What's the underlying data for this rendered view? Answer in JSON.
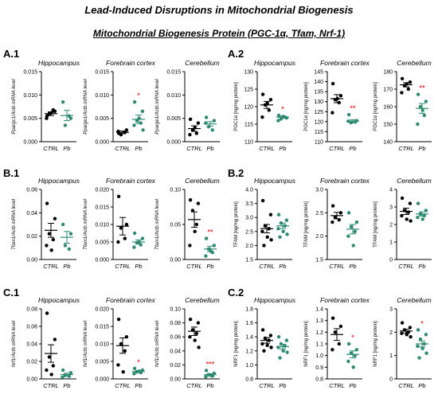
{
  "header": {
    "title": "Lead-Induced Disruptions in Mitochondrial Biogenesis",
    "subtitle": "Mitochondrial Biogenesis Protein (PGC-1α, Tfam, Nrf-1)"
  },
  "panels": {
    "a1": "A.1",
    "a2": "A.2",
    "b1": "B.1",
    "b2": "B.2",
    "c1": "C.1",
    "c2": "C.2"
  },
  "colors": {
    "ctrl": "#000000",
    "pb": "#2e8b6f",
    "significance": "#e8474f",
    "axis": "#000000"
  },
  "chart_data": [
    {
      "type": "scatter",
      "region": "Hippocampus",
      "ylabel": "Ppargc1/Actb mRNA level",
      "categories": [
        "CTRL",
        "Pb"
      ],
      "ylim": [
        0,
        0.015
      ],
      "ticks": [
        "0.000",
        "0.005",
        "0.010",
        "0.015"
      ],
      "series": [
        {
          "name": "CTRL",
          "values": [
            0.0055,
            0.0065,
            0.006,
            0.0068,
            0.005,
            0.0062
          ],
          "mean": 0.006,
          "sem": 0.0004
        },
        {
          "name": "Pb",
          "values": [
            0.0085,
            0.005,
            0.0035,
            0.0055
          ],
          "mean": 0.0056,
          "sem": 0.0011
        }
      ],
      "significance": ""
    },
    {
      "type": "scatter",
      "region": "Forebrain cortex",
      "ylabel": "Pparge1/Actb mRNA level",
      "categories": [
        "CTRL",
        "Pb"
      ],
      "ylim": [
        0,
        0.015
      ],
      "ticks": [
        "0.000",
        "0.005",
        "0.010",
        "0.015"
      ],
      "series": [
        {
          "name": "CTRL",
          "values": [
            0.0018,
            0.0025,
            0.0015,
            0.002,
            0.0022
          ],
          "mean": 0.002,
          "sem": 0.0003
        },
        {
          "name": "Pb",
          "values": [
            0.0085,
            0.0065,
            0.0045,
            0.004,
            0.0035,
            0.005,
            0.0025
          ],
          "mean": 0.0048,
          "sem": 0.0009
        }
      ],
      "significance": "*"
    },
    {
      "type": "scatter",
      "region": "Cerebellum",
      "ylabel": "Pparge1/Actb mRNA level",
      "categories": [
        "CTRL",
        "Pb"
      ],
      "ylim": [
        0,
        0.015
      ],
      "ticks": [
        "0.000",
        "0.005",
        "0.010",
        "0.015"
      ],
      "series": [
        {
          "name": "CTRL",
          "values": [
            0.0048,
            0.004,
            0.0025,
            0.0018,
            0.0015,
            0.003
          ],
          "mean": 0.0028,
          "sem": 0.0006
        },
        {
          "name": "Pb",
          "values": [
            0.0052,
            0.0045,
            0.0032,
            0.0025,
            0.004
          ],
          "mean": 0.0038,
          "sem": 0.0005
        }
      ],
      "significance": ""
    },
    {
      "type": "scatter",
      "region": "Hippocampus",
      "ylabel": "PGC1α [ng/mg protein]",
      "categories": [
        "CTRL",
        "Pb"
      ],
      "ylim": [
        110,
        130
      ],
      "ticks": [
        "110",
        "115",
        "120",
        "125",
        "130"
      ],
      "series": [
        {
          "name": "CTRL",
          "values": [
            123.5,
            122,
            120.5,
            119,
            117,
            121
          ],
          "mean": 120.5,
          "sem": 1
        },
        {
          "name": "Pb",
          "values": [
            117.5,
            116.8,
            116.5,
            117,
            116,
            117.2
          ],
          "mean": 117,
          "sem": 0.3
        }
      ],
      "significance": "*"
    },
    {
      "type": "scatter",
      "region": "Forebrain cortex",
      "ylabel": "PGC1α [ng/mg protein]",
      "categories": [
        "CTRL",
        "Pb"
      ],
      "ylim": [
        110,
        145
      ],
      "ticks": [
        "110",
        "115",
        "120",
        "125",
        "130",
        "135",
        "140",
        "145"
      ],
      "series": [
        {
          "name": "CTRL",
          "values": [
            139,
            133,
            131,
            129.5,
            124.5,
            131.5
          ],
          "mean": 131.5,
          "sem": 2
        },
        {
          "name": "Pb",
          "values": [
            123.5,
            120.5,
            119.5,
            119.8,
            120.2
          ],
          "mean": 120.3,
          "sem": 0.7
        }
      ],
      "significance": "**"
    },
    {
      "type": "scatter",
      "region": "Cerebellum",
      "ylabel": "PGC1α [ng/mg protein]",
      "categories": [
        "CTRL",
        "Pb"
      ],
      "ylim": [
        140,
        180
      ],
      "ticks": [
        "140",
        "150",
        "160",
        "170",
        "180"
      ],
      "series": [
        {
          "name": "CTRL",
          "values": [
            176,
            174,
            172,
            170,
            168,
            173
          ],
          "mean": 172.5,
          "sem": 1.2
        },
        {
          "name": "Pb",
          "values": [
            167,
            163,
            160,
            155,
            150,
            158
          ],
          "mean": 159,
          "sem": 2.8
        }
      ],
      "significance": "**"
    },
    {
      "type": "scatter",
      "region": "Hippocampus",
      "ylabel": "Tfam1/Actb mRNA level",
      "categories": [
        "CTRL",
        "Pb"
      ],
      "ylim": [
        0,
        0.06
      ],
      "ticks": [
        "0.00",
        "0.02",
        "0.04",
        "0.06"
      ],
      "series": [
        {
          "name": "CTRL",
          "values": [
            0.048,
            0.035,
            0.022,
            0.017,
            0.012,
            0.008
          ],
          "mean": 0.025,
          "sem": 0.006
        },
        {
          "name": "Pb",
          "values": [
            0.03,
            0.022,
            0.012,
            0.009
          ],
          "mean": 0.019,
          "sem": 0.005
        }
      ],
      "significance": ""
    },
    {
      "type": "scatter",
      "region": "Forebrain cortex",
      "ylabel": "Tfam1/Actb mRNA level",
      "categories": [
        "CTRL",
        "Pb"
      ],
      "ylim": [
        0,
        0.02
      ],
      "ticks": [
        "0.000",
        "0.005",
        "0.010",
        "0.015",
        "0.020"
      ],
      "series": [
        {
          "name": "CTRL",
          "values": [
            0.018,
            0.01,
            0.009,
            0.006,
            0.005
          ],
          "mean": 0.0095,
          "sem": 0.0025
        },
        {
          "name": "Pb",
          "values": [
            0.0075,
            0.006,
            0.0048,
            0.0042,
            0.0035,
            0.005
          ],
          "mean": 0.005,
          "sem": 0.0006
        }
      ],
      "significance": ""
    },
    {
      "type": "scatter",
      "region": "Cerebellum",
      "ylabel": "Tfam1/Actb mRNA level",
      "categories": [
        "CTRL",
        "Pb"
      ],
      "ylim": [
        0,
        0.1
      ],
      "ticks": [
        "0.00",
        "0.05",
        "0.10"
      ],
      "series": [
        {
          "name": "CTRL",
          "values": [
            0.085,
            0.08,
            0.07,
            0.05,
            0.02,
            0.04
          ],
          "mean": 0.057,
          "sem": 0.011
        },
        {
          "name": "Pb",
          "values": [
            0.03,
            0.02,
            0.015,
            0.01,
            0.005,
            0.012
          ],
          "mean": 0.015,
          "sem": 0.004
        }
      ],
      "significance": "**"
    },
    {
      "type": "scatter",
      "region": "Hippocampus",
      "ylabel": "TFAM [ng/mg protein]",
      "categories": [
        "CTRL",
        "Pb"
      ],
      "ylim": [
        1.5,
        4
      ],
      "ticks": [
        "1.5",
        "2.0",
        "2.5",
        "3.0",
        "3.5",
        "4.0"
      ],
      "series": [
        {
          "name": "CTRL",
          "values": [
            3.6,
            3.1,
            2.7,
            2.6,
            2.5,
            2.3,
            2.2,
            2.0
          ],
          "mean": 2.6,
          "sem": 0.15
        },
        {
          "name": "Pb",
          "values": [
            3.1,
            2.9,
            2.8,
            2.7,
            2.6,
            2.5,
            2.4,
            2.3
          ],
          "mean": 2.7,
          "sem": 0.1
        }
      ],
      "significance": ""
    },
    {
      "type": "scatter",
      "region": "Forebrain cortex",
      "ylabel": "TFAM [ng/mg protein]",
      "categories": [
        "CTRL",
        "Pb"
      ],
      "ylim": [
        1.5,
        3
      ],
      "ticks": [
        "1.5",
        "2.0",
        "2.5",
        "3.0"
      ],
      "series": [
        {
          "name": "CTRL",
          "values": [
            2.65,
            2.5,
            2.4,
            2.35,
            2.3
          ],
          "mean": 2.44,
          "sem": 0.07
        },
        {
          "name": "Pb",
          "values": [
            2.5,
            2.3,
            2.2,
            2.1,
            2.0,
            1.8
          ],
          "mean": 2.15,
          "sem": 0.1
        }
      ],
      "significance": ""
    },
    {
      "type": "scatter",
      "region": "Cerebellum",
      "ylabel": "TFAM [ng/mg protein]",
      "categories": [
        "CTRL",
        "Pb"
      ],
      "ylim": [
        0,
        4
      ],
      "ticks": [
        "0",
        "1",
        "2",
        "3",
        "4"
      ],
      "series": [
        {
          "name": "CTRL",
          "values": [
            3.5,
            3.2,
            2.8,
            2.7,
            2.5,
            2.3,
            2.2
          ],
          "mean": 2.75,
          "sem": 0.18
        },
        {
          "name": "Pb",
          "values": [
            3.2,
            2.8,
            2.6,
            2.5,
            2.4,
            2.3
          ],
          "mean": 2.6,
          "sem": 0.12
        }
      ],
      "significance": ""
    },
    {
      "type": "scatter",
      "region": "Hippocampus",
      "ylabel": "Nrf1/Actb mRNA level",
      "categories": [
        "CTRL",
        "Pb"
      ],
      "ylim": [
        0,
        0.08
      ],
      "ticks": [
        "0.00",
        "0.02",
        "0.04",
        "0.06",
        "0.08"
      ],
      "series": [
        {
          "name": "CTRL",
          "values": [
            0.075,
            0.045,
            0.025,
            0.015,
            0.01,
            0.005
          ],
          "mean": 0.029,
          "sem": 0.01
        },
        {
          "name": "Pb",
          "values": [
            0.01,
            0.007,
            0.004,
            0.003,
            0.002
          ],
          "mean": 0.005,
          "sem": 0.0015
        }
      ],
      "significance": ""
    },
    {
      "type": "scatter",
      "region": "Forebrain cortex",
      "ylabel": "Nrf1/Actb mRNA level",
      "categories": [
        "CTRL",
        "Pb"
      ],
      "ylim": [
        0,
        0.02
      ],
      "ticks": [
        "0.000",
        "0.005",
        "0.010",
        "0.015",
        "0.020"
      ],
      "series": [
        {
          "name": "CTRL",
          "values": [
            0.017,
            0.012,
            0.01,
            0.008,
            0.004,
            0.002
          ],
          "mean": 0.0095,
          "sem": 0.0022
        },
        {
          "name": "Pb",
          "values": [
            0.003,
            0.0025,
            0.002,
            0.0018,
            0.0015,
            0.0022
          ],
          "mean": 0.0021,
          "sem": 0.0003
        }
      ],
      "significance": "*"
    },
    {
      "type": "scatter",
      "region": "Cerebellum",
      "ylabel": "Nrf1/Actb mRNA level",
      "categories": [
        "CTRL",
        "Pb"
      ],
      "ylim": [
        0,
        0.1
      ],
      "ticks": [
        "0.00",
        "0.02",
        "0.04",
        "0.06",
        "0.08",
        "0.10"
      ],
      "series": [
        {
          "name": "CTRL",
          "values": [
            0.085,
            0.08,
            0.07,
            0.065,
            0.06,
            0.055,
            0.045
          ],
          "mean": 0.068,
          "sem": 0.006
        },
        {
          "name": "Pb",
          "values": [
            0.012,
            0.008,
            0.006,
            0.004,
            0.003,
            0.005
          ],
          "mean": 0.006,
          "sem": 0.0015
        }
      ],
      "significance": "***"
    },
    {
      "type": "scatter",
      "region": "Hippocampus",
      "ylabel": "NRF1 [ng/mg protein]",
      "categories": [
        "CTRL",
        "Pb"
      ],
      "ylim": [
        0.8,
        1.8
      ],
      "ticks": [
        "0.8",
        "1.0",
        "1.2",
        "1.4",
        "1.6",
        "1.8"
      ],
      "series": [
        {
          "name": "CTRL",
          "values": [
            1.5,
            1.42,
            1.38,
            1.35,
            1.3,
            1.28,
            1.25,
            1.2
          ],
          "mean": 1.35,
          "sem": 0.04
        },
        {
          "name": "Pb",
          "values": [
            1.4,
            1.35,
            1.3,
            1.27,
            1.25,
            1.2,
            1.18,
            1.1
          ],
          "mean": 1.26,
          "sem": 0.035
        }
      ],
      "significance": ""
    },
    {
      "type": "scatter",
      "region": "Forebrain cortex",
      "ylabel": "NRF1 [ng/mg protein]",
      "categories": [
        "CTRL",
        "Pb"
      ],
      "ylim": [
        0.8,
        1.4
      ],
      "ticks": [
        "0.8",
        "0.9",
        "1.0",
        "1.1",
        "1.2",
        "1.3",
        "1.4"
      ],
      "series": [
        {
          "name": "CTRL",
          "values": [
            1.32,
            1.25,
            1.2,
            1.1,
            1.05
          ],
          "mean": 1.18,
          "sem": 0.05
        },
        {
          "name": "Pb",
          "values": [
            1.1,
            1.05,
            1.02,
            1.0,
            0.95,
            0.9
          ],
          "mean": 1.01,
          "sem": 0.03
        }
      ],
      "significance": "*"
    },
    {
      "type": "scatter",
      "region": "Cerebellum",
      "ylabel": "NRF1 [ng/mg protein]",
      "categories": [
        "CTRL",
        "Pb"
      ],
      "ylim": [
        0,
        3
      ],
      "ticks": [
        "0",
        "1",
        "2",
        "3"
      ],
      "series": [
        {
          "name": "CTRL",
          "values": [
            2.4,
            2.2,
            2.1,
            2.0,
            1.95,
            1.9,
            1.8
          ],
          "mean": 2.05,
          "sem": 0.08
        },
        {
          "name": "Pb",
          "values": [
            2.1,
            1.9,
            1.7,
            1.5,
            1.4,
            1.3,
            1.1,
            0.9
          ],
          "mean": 1.5,
          "sem": 0.13
        }
      ],
      "significance": "*"
    }
  ]
}
